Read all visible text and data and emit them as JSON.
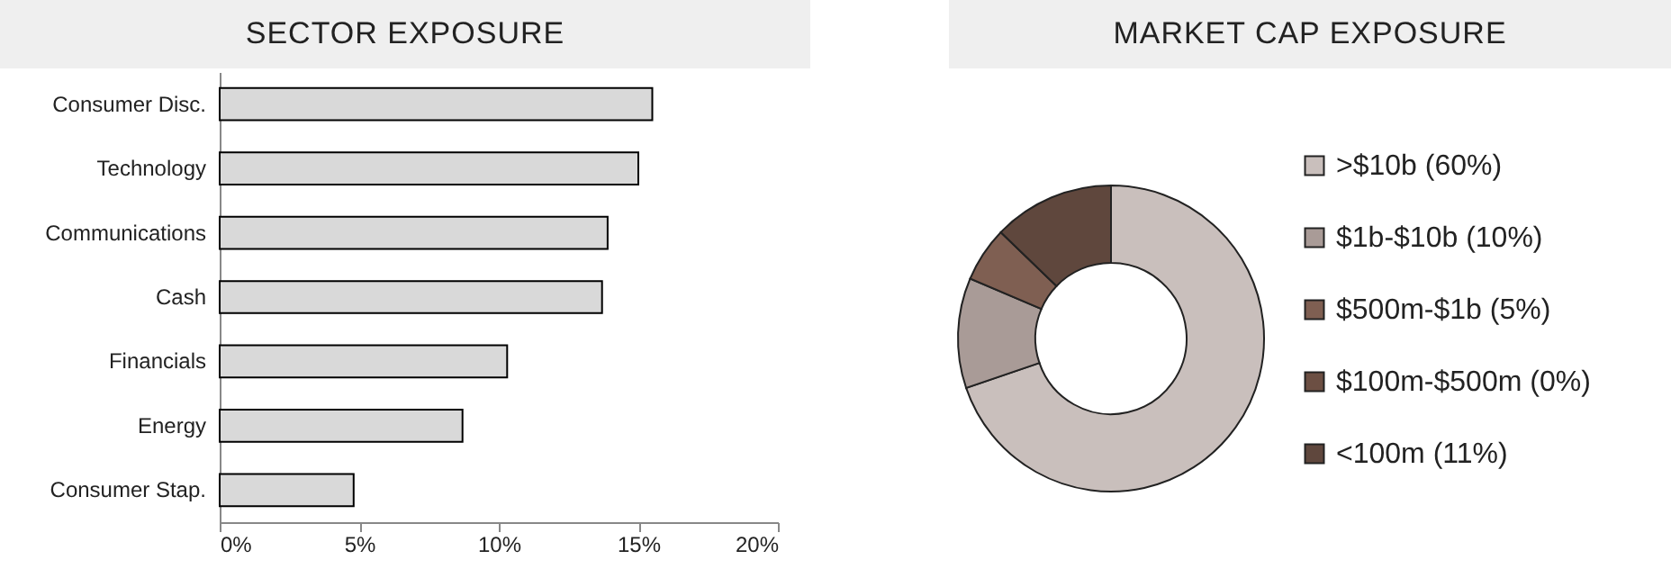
{
  "chart_data": [
    {
      "type": "bar",
      "title": "SECTOR EXPOSURE",
      "orientation": "horizontal",
      "categories": [
        "Consumer Disc.",
        "Technology",
        "Communications",
        "Cash",
        "Financials",
        "Energy",
        "Consumer Stap."
      ],
      "values": [
        15.5,
        15.0,
        13.9,
        13.7,
        10.3,
        8.7,
        4.8
      ],
      "color": "#d9d9d9",
      "xlim": [
        0,
        20
      ],
      "xticks": [
        {
          "value": 0,
          "label": "0%"
        },
        {
          "value": 5,
          "label": "5%"
        },
        {
          "value": 10,
          "label": "10%"
        },
        {
          "value": 15,
          "label": "15%"
        },
        {
          "value": 20,
          "label": "20%"
        }
      ]
    },
    {
      "type": "donut",
      "title": "MARKET CAP EXPOSURE",
      "categories": [
        ">$10b (60%)",
        "$1b-$10b (10%)",
        "$500m-$1b (5%)",
        "$100m-$500m (0%)",
        "<100m (11%)"
      ],
      "values": [
        60,
        10,
        5,
        0,
        11
      ],
      "colors": [
        "#c9bfbc",
        "#a99b97",
        "#7f5f52",
        "#6c4f43",
        "#5f473d"
      ],
      "legend": "right"
    }
  ]
}
